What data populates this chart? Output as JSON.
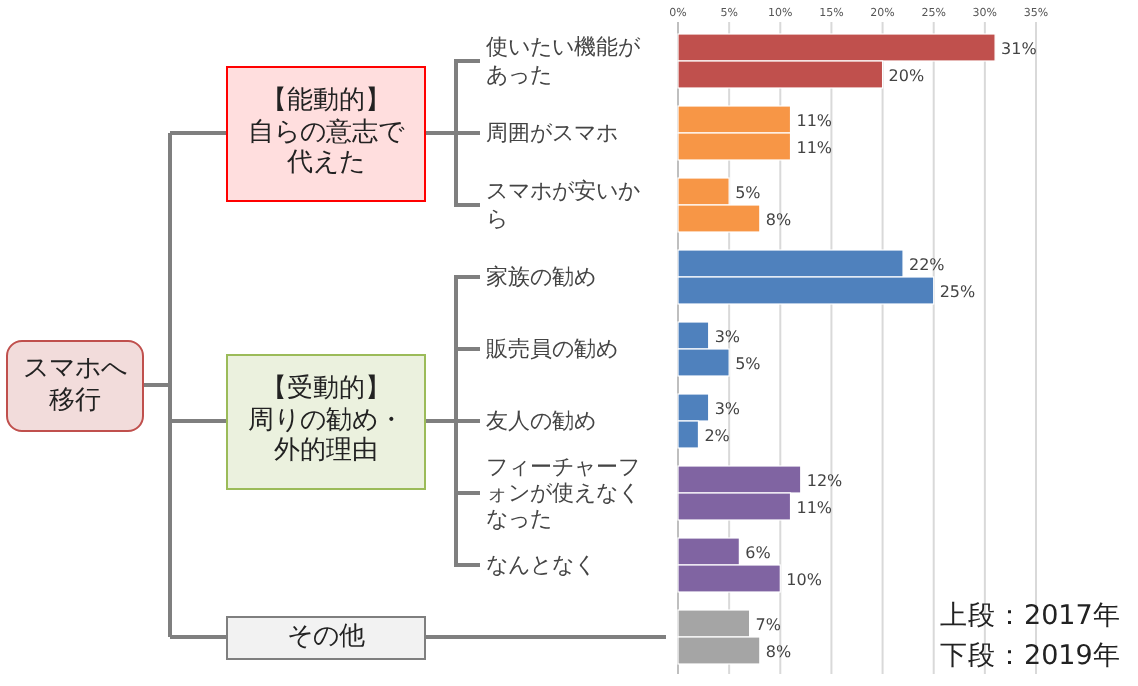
{
  "chart_data": {
    "type": "bar",
    "orientation": "horizontal",
    "grid": "x",
    "categories": [
      "使いたい機能があった",
      "周囲がスマホ",
      "スマホが安いから",
      "家族の勧め",
      "販売員の勧め",
      "友人の勧め",
      "フィーチャーフォンが使えなくなった",
      "なんとなく",
      null
    ],
    "series": [
      {
        "values": [
          31,
          11,
          5,
          22,
          3,
          3,
          12,
          6,
          7
        ],
        "value_labels": [
          "31%",
          "11%",
          "5%",
          "22%",
          "3%",
          "3%",
          "12%",
          "6%",
          "7%"
        ],
        "colors": [
          "#c0504d",
          "#f79646",
          "#f79646",
          "#4f81bd",
          "#4f81bd",
          "#4f81bd",
          "#8064a2",
          "#8064a2",
          "#a5a5a5"
        ]
      },
      {
        "values": [
          20,
          11,
          8,
          25,
          5,
          2,
          11,
          10,
          8
        ],
        "value_labels": [
          "20%",
          "11%",
          "8%",
          "25%",
          "5%",
          "2%",
          "11%",
          "10%",
          "8%"
        ],
        "colors": [
          "#c0504d",
          "#f79646",
          "#f79646",
          "#4f81bd",
          "#4f81bd",
          "#4f81bd",
          "#8064a2",
          "#8064a2",
          "#a5a5a5"
        ]
      }
    ],
    "xlim": [
      0,
      35
    ],
    "xticks": [
      {
        "value": 0,
        "label": "0%"
      },
      {
        "value": 5,
        "label": "5%"
      },
      {
        "value": 10,
        "label": "10%"
      },
      {
        "value": 15,
        "label": "15%"
      },
      {
        "value": 20,
        "label": "20%"
      },
      {
        "value": 25,
        "label": "25%"
      },
      {
        "value": 30,
        "label": "30%"
      },
      {
        "value": 35,
        "label": "35%"
      }
    ],
    "annotations": [
      "スマホへ移行",
      "【能動的】",
      "自らの意志で代えた",
      "【受動的】",
      "周りの勧め・外的理由",
      "その他",
      "上段：2017年",
      "下段：2019年"
    ]
  }
}
